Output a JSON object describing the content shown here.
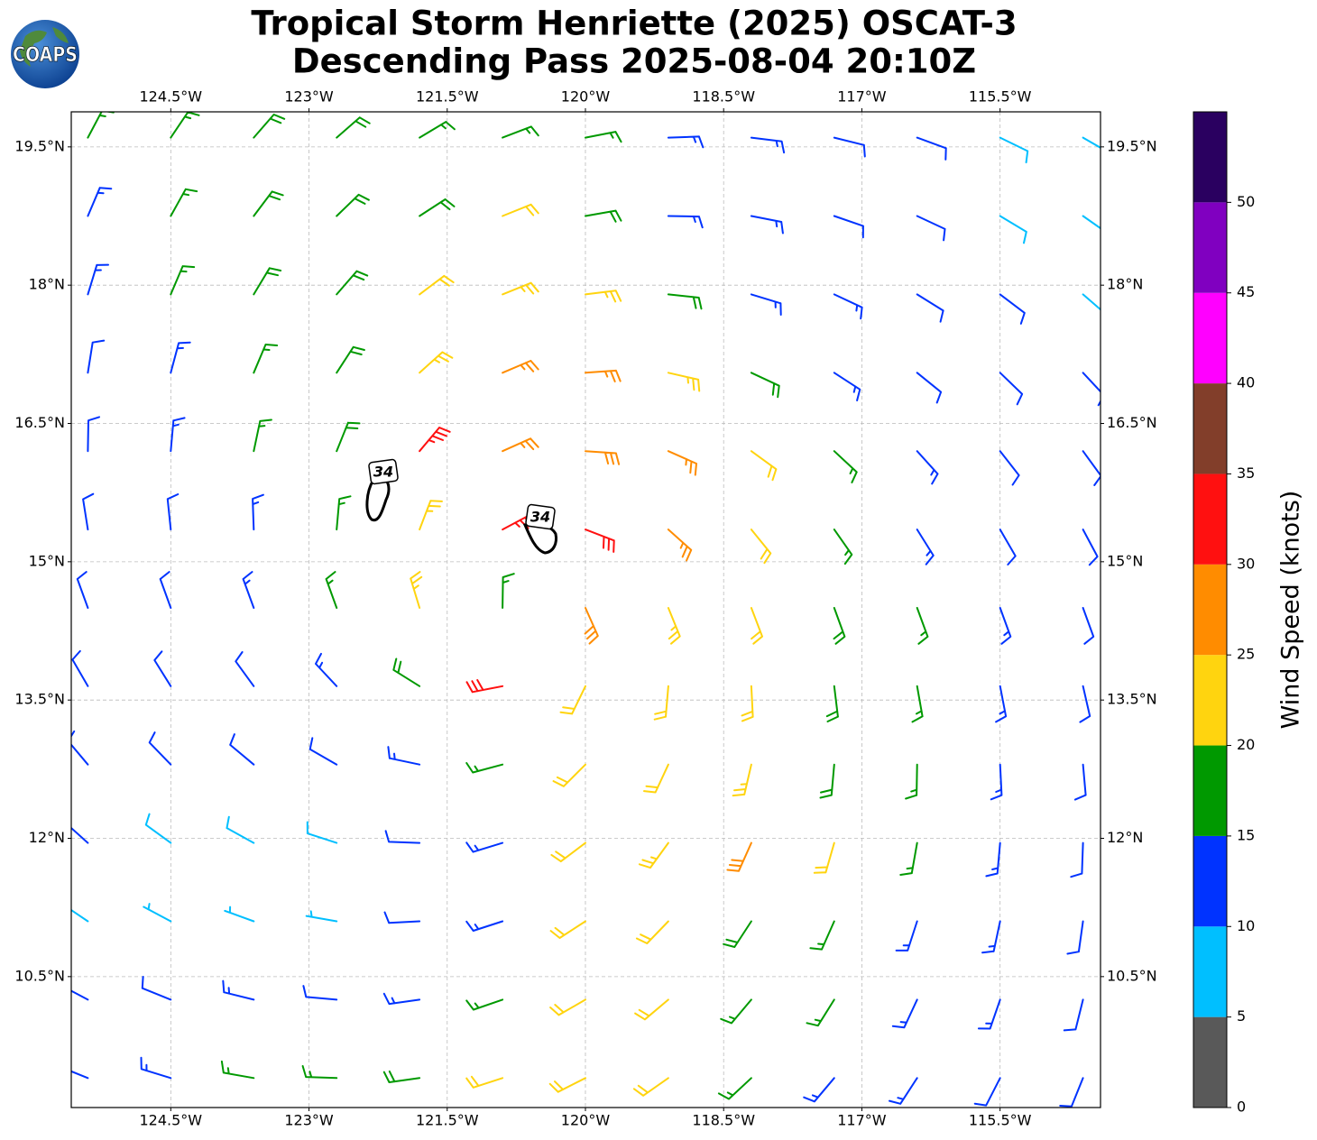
{
  "logo": "COAPS",
  "chart_data": {
    "type": "wind_barbs",
    "title": "Tropical Storm Henriette (2025) OSCAT-3",
    "subtitle": "Descending Pass 2025-08-04 20:10Z",
    "xlim": [
      -125.58,
      -114.41
    ],
    "ylim": [
      9.08,
      19.88
    ],
    "xticks": [
      {
        "value": -124.5,
        "label": "124.5°W"
      },
      {
        "value": -123,
        "label": "123°W"
      },
      {
        "value": -121.5,
        "label": "121.5°W"
      },
      {
        "value": -120,
        "label": "120°W"
      },
      {
        "value": -118.5,
        "label": "118.5°W"
      },
      {
        "value": -117,
        "label": "117°W"
      },
      {
        "value": -115.5,
        "label": "115.5°W"
      }
    ],
    "yticks": [
      {
        "value": 19.5,
        "label": "19.5°N"
      },
      {
        "value": 18,
        "label": "18°N"
      },
      {
        "value": 16.5,
        "label": "16.5°N"
      },
      {
        "value": 15,
        "label": "15°N"
      },
      {
        "value": 13.5,
        "label": "13.5°N"
      },
      {
        "value": 12,
        "label": "12°N"
      },
      {
        "value": 10.5,
        "label": "10.5°N"
      }
    ],
    "grid": true,
    "wind": {
      "lon": [
        -125.4,
        -124.5,
        -123.6,
        -122.7,
        -121.8,
        -120.9,
        -120.0,
        -119.1,
        -118.2,
        -117.3,
        -116.4,
        -115.5,
        -114.6
      ],
      "lat": [
        19.6,
        18.75,
        17.9,
        17.05,
        16.2,
        15.35,
        14.5,
        13.65,
        12.8,
        11.95,
        11.1,
        10.25,
        9.4
      ],
      "speed": [
        [
          17,
          17,
          18,
          18,
          17,
          16,
          16,
          14,
          13,
          12,
          10,
          9,
          8
        ],
        [
          14,
          17,
          18,
          18,
          19,
          20,
          18,
          14,
          13,
          12,
          10,
          9,
          8
        ],
        [
          13,
          16,
          18,
          19,
          22,
          23,
          23,
          19,
          14,
          13,
          12,
          11,
          8
        ],
        [
          12,
          14,
          17,
          19,
          24,
          25,
          27,
          23,
          18,
          14,
          12,
          11,
          10
        ],
        [
          12,
          13,
          15,
          19,
          33,
          26,
          28,
          27,
          20,
          16,
          13,
          12,
          10
        ],
        [
          12,
          12,
          14,
          17,
          24,
          33,
          30,
          26,
          21,
          17,
          14,
          12,
          11
        ],
        [
          12,
          12,
          13,
          15,
          24,
          16,
          28,
          24,
          22,
          19,
          16,
          13,
          12
        ],
        [
          12,
          12,
          12,
          14,
          18,
          30,
          22,
          22,
          20,
          18,
          15,
          13,
          12
        ],
        [
          11,
          11,
          11,
          12,
          14,
          15,
          20,
          22,
          24,
          18,
          15,
          13,
          12
        ],
        [
          10,
          8,
          8,
          9,
          10,
          14,
          20,
          24,
          28,
          20,
          15,
          13,
          12
        ],
        [
          9,
          7,
          5,
          6,
          10,
          14,
          22,
          22,
          18,
          16,
          14,
          13,
          12
        ],
        [
          12,
          12,
          13,
          12,
          13,
          16,
          22,
          20,
          17,
          15,
          14,
          13,
          12
        ],
        [
          13,
          14,
          16,
          17,
          18,
          20,
          22,
          20,
          16,
          14,
          13,
          12,
          11
        ]
      ],
      "direction": [
        [
          28,
          34,
          41,
          49,
          59,
          69,
          79,
          88,
          97,
          104,
          110,
          116,
          120
        ],
        [
          23,
          29,
          37,
          46,
          57,
          68,
          80,
          91,
          101,
          109,
          115,
          121,
          125
        ],
        [
          17,
          23,
          31,
          41,
          53,
          68,
          83,
          96,
          107,
          115,
          122,
          127,
          131
        ],
        [
          9,
          15,
          23,
          33,
          48,
          67,
          86,
          103,
          115,
          123,
          129,
          134,
          137
        ],
        [
          1,
          5,
          12,
          22,
          40,
          66,
          94,
          114,
          126,
          133,
          138,
          142,
          144
        ],
        [
          351,
          354,
          358,
          5,
          21,
          62,
          111,
          132,
          141,
          145,
          148,
          150,
          152
        ],
        [
          340,
          340,
          340,
          340,
          343,
          1,
          156,
          158,
          159,
          160,
          160,
          160,
          160
        ],
        [
          330,
          328,
          324,
          317,
          302,
          259,
          206,
          185,
          177,
          173,
          170,
          169,
          167
        ],
        [
          320,
          316,
          310,
          300,
          282,
          255,
          225,
          205,
          193,
          185,
          181,
          177,
          175
        ],
        [
          312,
          306,
          299,
          288,
          272,
          253,
          233,
          216,
          204,
          196,
          190,
          185,
          182
        ],
        [
          304,
          298,
          290,
          280,
          267,
          252,
          237,
          224,
          213,
          204,
          198,
          192,
          188
        ],
        [
          298,
          292,
          284,
          275,
          262,
          251,
          240,
          230,
          220,
          212,
          205,
          199,
          194
        ],
        [
          292,
          287,
          280,
          272,
          262,
          252,
          243,
          235,
          227,
          220,
          213,
          207,
          202
        ]
      ]
    },
    "contour_labels": [
      34,
      34
    ],
    "colorbar": {
      "label": "Wind Speed (knots)",
      "ylim": [
        0,
        55
      ],
      "bounds": [
        0,
        5,
        10,
        15,
        20,
        25,
        30,
        35,
        40,
        45,
        50,
        55
      ],
      "colors": [
        "#595959",
        "#00bfff",
        "#0033ff",
        "#009900",
        "#ffd40f",
        "#ff8c00",
        "#ff1010",
        "#823e2a",
        "#ff00ff",
        "#8000c0",
        "#2a0060"
      ],
      "ticks": [
        0,
        5,
        10,
        15,
        20,
        25,
        30,
        35,
        40,
        45,
        50
      ]
    }
  }
}
